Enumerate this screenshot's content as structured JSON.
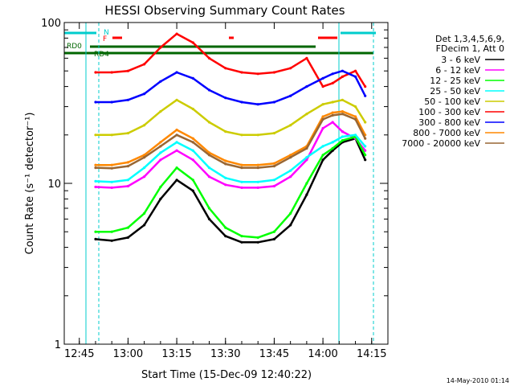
{
  "chart_data": {
    "type": "line",
    "title": "HESSI Observing Summary Count Rates",
    "xlabel": "Start Time (15-Dec-09 12:40:22)",
    "ylabel": "Count Rate (s⁻¹ detector⁻¹)",
    "yscale": "log",
    "ylim": [
      1,
      100
    ],
    "xlim": [
      "12:40:22",
      "14:20:00"
    ],
    "x_ticks": [
      "12:45",
      "13:00",
      "13:15",
      "13:30",
      "13:45",
      "14:00",
      "14:15"
    ],
    "y_ticks": [
      "1",
      "10",
      "100"
    ],
    "legend": {
      "placement": "right",
      "header": [
        "Det 1,3,4,5,6,9,",
        "FDecim 1, Att 0"
      ],
      "entries": [
        {
          "label": "3 - 6 keV",
          "color": "#000000"
        },
        {
          "label": "6 - 12 keV",
          "color": "#ff00ff"
        },
        {
          "label": "12 - 25 keV",
          "color": "#00ff00"
        },
        {
          "label": "25 - 50 keV",
          "color": "#00ffff"
        },
        {
          "label": "50 - 100 keV",
          "color": "#cccc00"
        },
        {
          "label": "100 - 300 keV",
          "color": "#ff0000"
        },
        {
          "label": "300 - 800 keV",
          "color": "#0000ff"
        },
        {
          "label": "800 - 7000 keV",
          "color": "#ff8800"
        },
        {
          "label": "7000 - 20000 keV",
          "color": "#996633"
        }
      ]
    },
    "series": [
      {
        "name": "3 - 6 keV",
        "color": "#000000",
        "x": [
          "12:50",
          "12:55",
          "13:00",
          "13:05",
          "13:10",
          "13:15",
          "13:20",
          "13:25",
          "13:30",
          "13:35",
          "13:40",
          "13:45",
          "13:50",
          "13:55",
          "14:00",
          "14:03",
          "14:06",
          "14:10",
          "14:13"
        ],
        "y": [
          4.5,
          4.4,
          4.6,
          5.5,
          8,
          10.5,
          9,
          6,
          4.7,
          4.3,
          4.3,
          4.5,
          5.5,
          8.5,
          14,
          16,
          18,
          19,
          14
        ]
      },
      {
        "name": "6 - 12 keV",
        "color": "#ff00ff",
        "x": [
          "12:50",
          "12:55",
          "13:00",
          "13:05",
          "13:10",
          "13:15",
          "13:20",
          "13:25",
          "13:30",
          "13:35",
          "13:40",
          "13:45",
          "13:50",
          "13:55",
          "14:00",
          "14:03",
          "14:06",
          "14:10",
          "14:13"
        ],
        "y": [
          9.5,
          9.4,
          9.6,
          11,
          14,
          16,
          14,
          11,
          9.8,
          9.4,
          9.4,
          9.6,
          11,
          14,
          22,
          24,
          21,
          19,
          16
        ]
      },
      {
        "name": "12 - 25 keV",
        "color": "#00ff00",
        "x": [
          "12:50",
          "12:55",
          "13:00",
          "13:05",
          "13:10",
          "13:15",
          "13:20",
          "13:25",
          "13:30",
          "13:35",
          "13:40",
          "13:45",
          "13:50",
          "13:55",
          "14:00",
          "14:03",
          "14:06",
          "14:10",
          "14:13"
        ],
        "y": [
          5,
          5,
          5.3,
          6.5,
          9.5,
          12.5,
          10.5,
          7,
          5.3,
          4.7,
          4.6,
          5,
          6.5,
          10,
          15,
          16.5,
          18.5,
          19.5,
          15
        ]
      },
      {
        "name": "25 - 50 keV",
        "color": "#00ffff",
        "x": [
          "12:50",
          "12:55",
          "13:00",
          "13:05",
          "13:10",
          "13:15",
          "13:20",
          "13:25",
          "13:30",
          "13:35",
          "13:40",
          "13:45",
          "13:50",
          "13:55",
          "14:00",
          "14:03",
          "14:06",
          "14:10",
          "14:13"
        ],
        "y": [
          10.3,
          10.2,
          10.5,
          12.5,
          15.5,
          18,
          16,
          12.5,
          10.8,
          10.2,
          10.2,
          10.5,
          12,
          14.5,
          17,
          18,
          19.5,
          20,
          17
        ]
      },
      {
        "name": "50 - 100 keV",
        "color": "#cccc00",
        "x": [
          "12:50",
          "12:55",
          "13:00",
          "13:05",
          "13:10",
          "13:15",
          "13:20",
          "13:25",
          "13:30",
          "13:35",
          "13:40",
          "13:45",
          "13:50",
          "13:55",
          "14:00",
          "14:03",
          "14:06",
          "14:10",
          "14:13"
        ],
        "y": [
          20,
          20,
          20.5,
          23,
          28,
          33,
          29,
          24,
          21,
          20,
          20,
          20.5,
          23,
          27,
          31,
          32,
          33,
          30,
          24
        ]
      },
      {
        "name": "100 - 300 keV",
        "color": "#ff0000",
        "x": [
          "12:50",
          "12:55",
          "13:00",
          "13:05",
          "13:10",
          "13:15",
          "13:20",
          "13:25",
          "13:30",
          "13:35",
          "13:40",
          "13:45",
          "13:50",
          "13:55",
          "14:00",
          "14:03",
          "14:06",
          "14:10",
          "14:13"
        ],
        "y": [
          49,
          49,
          50,
          55,
          70,
          85,
          75,
          60,
          52,
          49,
          48,
          49,
          52,
          60,
          40,
          42,
          46,
          50,
          40
        ]
      },
      {
        "name": "300 - 800 keV",
        "color": "#0000ff",
        "x": [
          "12:50",
          "12:55",
          "13:00",
          "13:05",
          "13:10",
          "13:15",
          "13:20",
          "13:25",
          "13:30",
          "13:35",
          "13:40",
          "13:45",
          "13:50",
          "13:55",
          "14:00",
          "14:03",
          "14:06",
          "14:10",
          "14:13"
        ],
        "y": [
          32,
          32,
          33,
          36,
          43,
          49,
          45,
          38,
          34,
          32,
          31,
          32,
          35,
          40,
          45,
          48,
          50,
          46,
          35
        ]
      },
      {
        "name": "800 - 7000 keV",
        "color": "#ff8800",
        "x": [
          "12:50",
          "12:55",
          "13:00",
          "13:05",
          "13:10",
          "13:15",
          "13:20",
          "13:25",
          "13:30",
          "13:35",
          "13:40",
          "13:45",
          "13:50",
          "13:55",
          "14:00",
          "14:03",
          "14:06",
          "14:10",
          "14:13"
        ],
        "y": [
          13,
          13,
          13.5,
          15,
          18,
          21.5,
          19,
          15.5,
          13.8,
          13,
          13,
          13.3,
          15,
          17,
          26,
          27.5,
          28,
          26,
          20
        ]
      },
      {
        "name": "7000 - 20000 keV",
        "color": "#996633",
        "x": [
          "12:50",
          "12:55",
          "13:00",
          "13:05",
          "13:10",
          "13:15",
          "13:20",
          "13:25",
          "13:30",
          "13:35",
          "13:40",
          "13:45",
          "13:50",
          "13:55",
          "14:00",
          "14:03",
          "14:06",
          "14:10",
          "14:13"
        ],
        "y": [
          12.5,
          12.4,
          12.8,
          14.5,
          17,
          20,
          18,
          15,
          13.2,
          12.5,
          12.5,
          12.8,
          14.5,
          16.5,
          25,
          26.5,
          27,
          25,
          19
        ]
      }
    ],
    "flags": [
      {
        "label": "RD0",
        "color": "#006600"
      },
      {
        "label": "RD4",
        "color": "#006600"
      },
      {
        "label": "N",
        "color": "#00cccc"
      },
      {
        "label": "F",
        "color": "#ff0000"
      }
    ],
    "grid": false,
    "footer": "14-May-2010 01:14"
  }
}
